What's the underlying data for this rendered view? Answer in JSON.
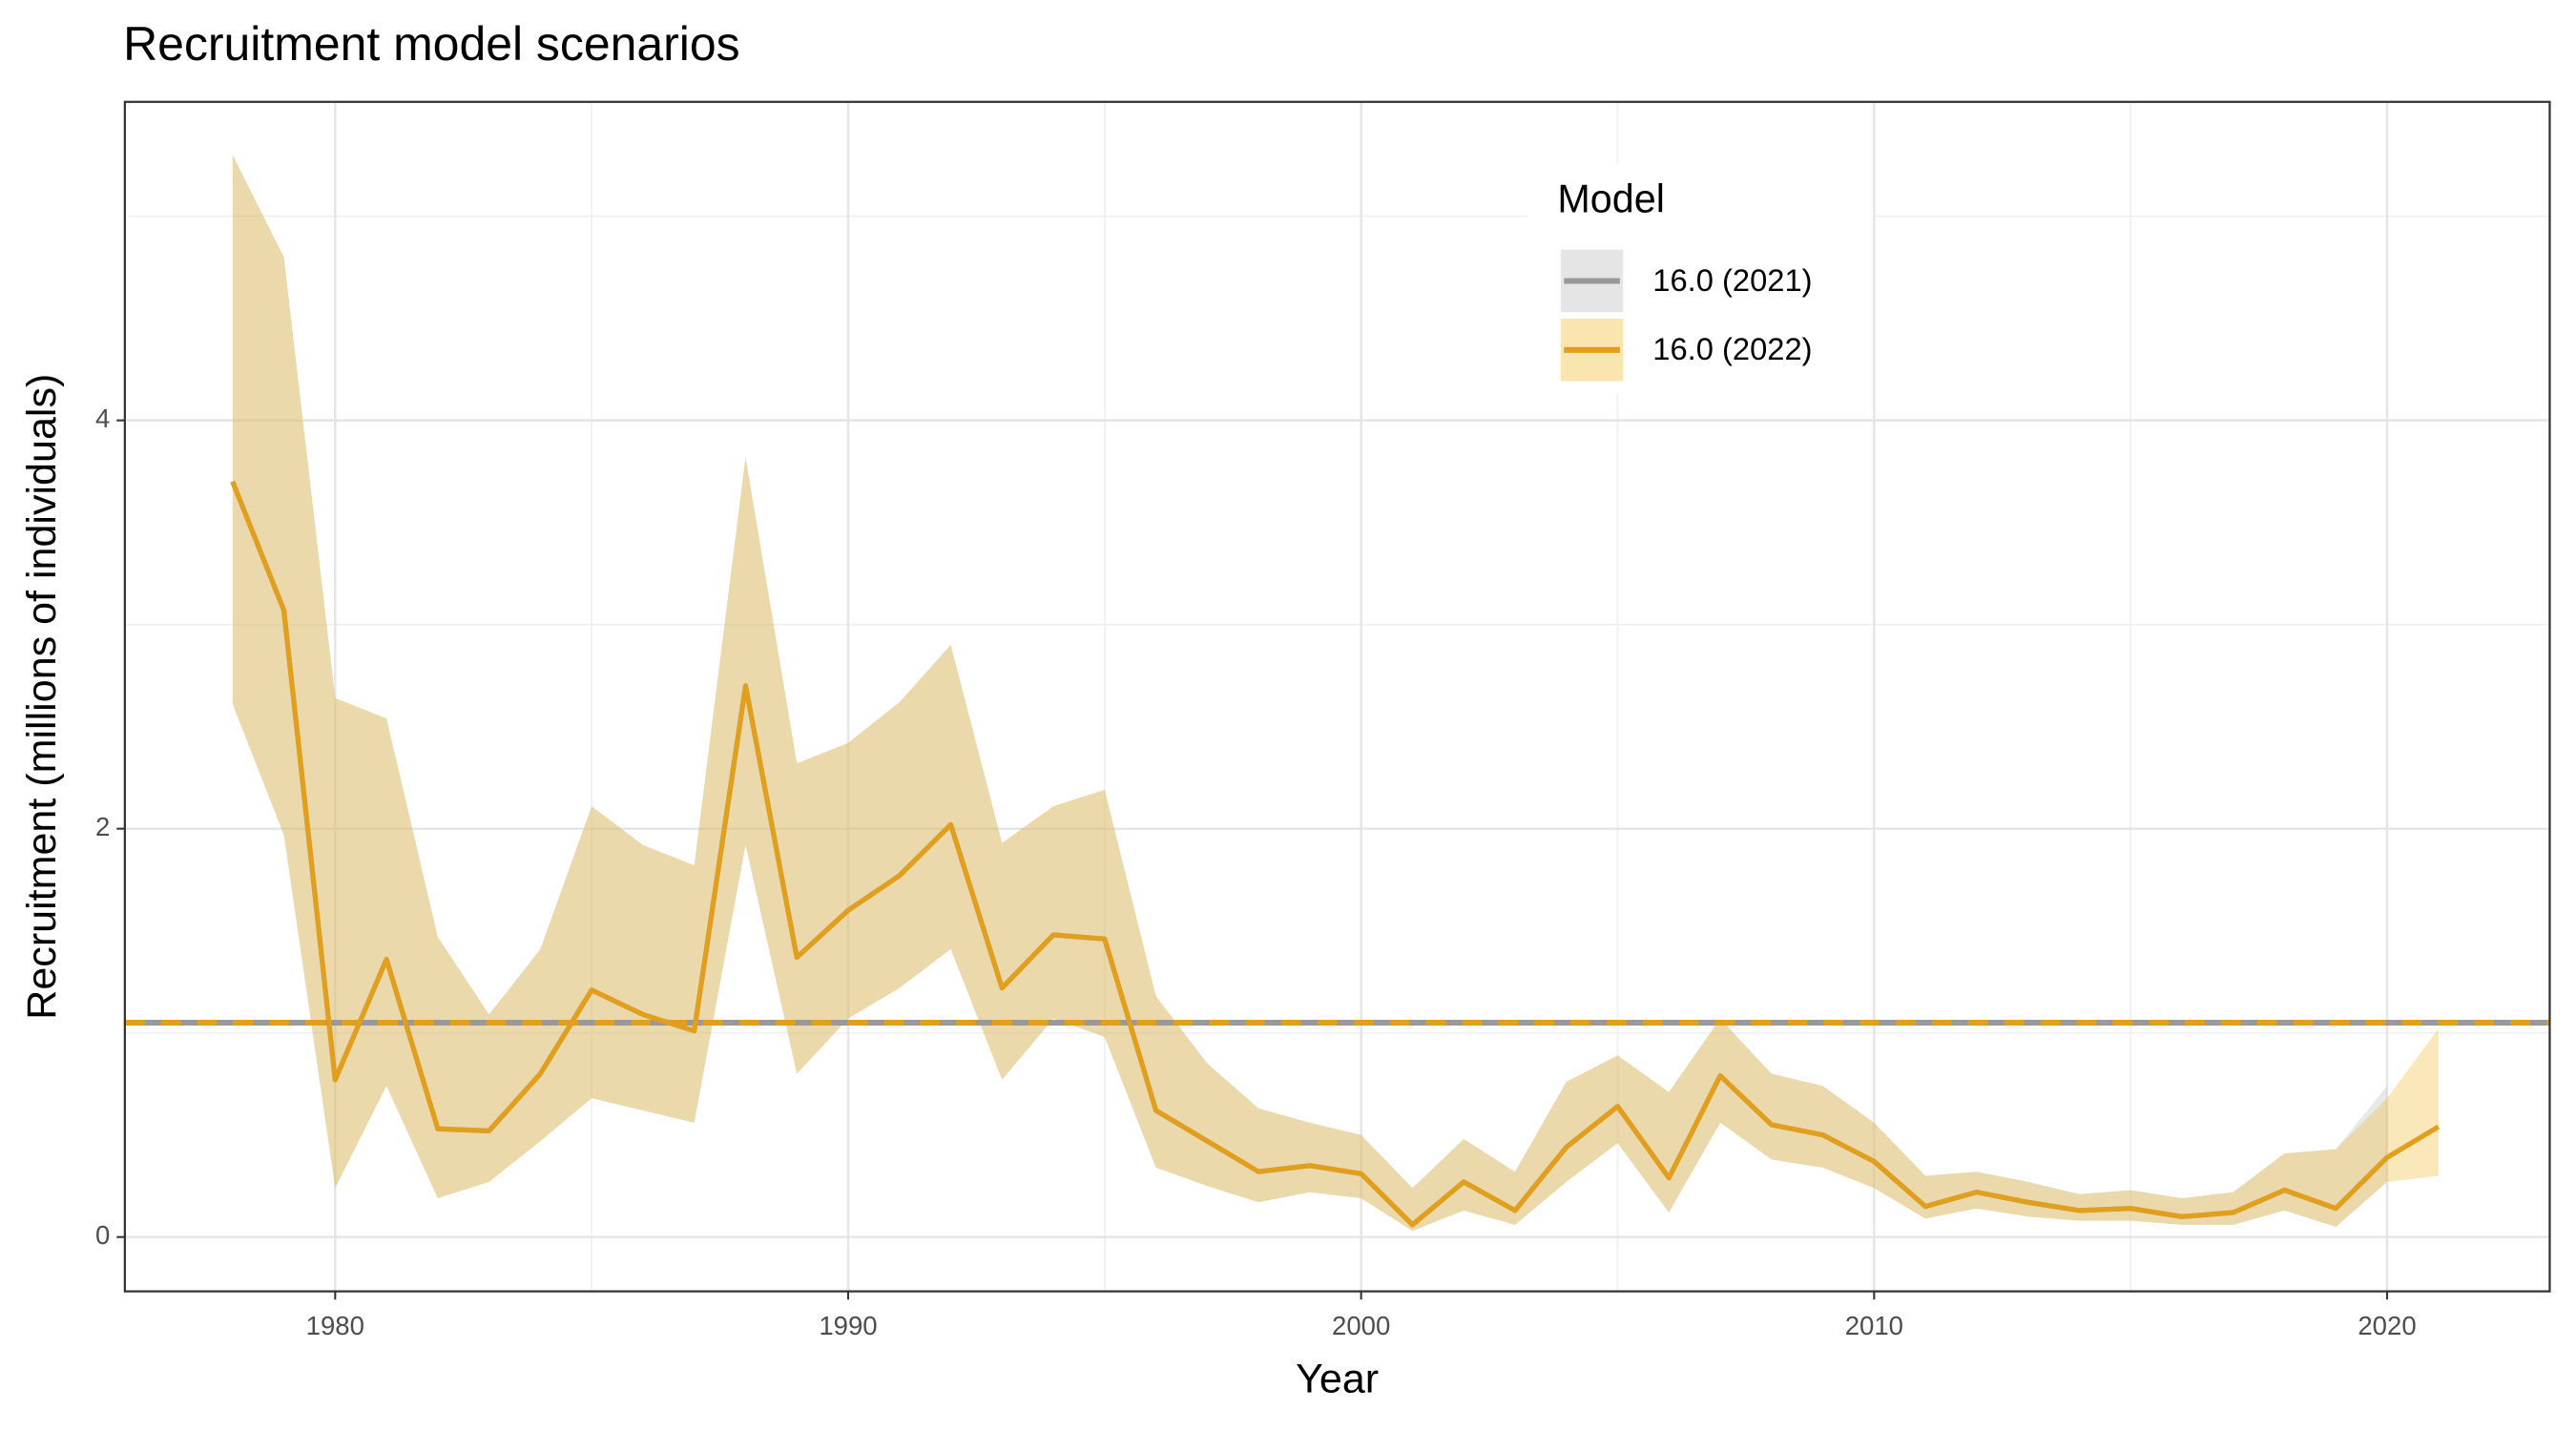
{
  "chart_data": {
    "type": "ribbon-line",
    "title": "Recruitment model scenarios",
    "x_label": "Year",
    "y_label": "Recruitment (millions of individuals)",
    "legend_title": "Model",
    "legend_position": "top-right",
    "x": [
      1978,
      1979,
      1980,
      1981,
      1982,
      1983,
      1984,
      1985,
      1986,
      1987,
      1988,
      1989,
      1990,
      1991,
      1992,
      1993,
      1994,
      1995,
      1996,
      1997,
      1998,
      1999,
      2000,
      2001,
      2002,
      2003,
      2004,
      2005,
      2006,
      2007,
      2008,
      2009,
      2010,
      2011,
      2012,
      2013,
      2014,
      2015,
      2016,
      2017,
      2018,
      2019,
      2020,
      2021
    ],
    "series": [
      {
        "name": "16.0 (2021)",
        "color": "#999999",
        "fill": "#bdbdbd",
        "dash": false,
        "reference": 1.05,
        "values": [
          3.7,
          3.07,
          0.77,
          1.36,
          0.53,
          0.52,
          0.8,
          1.21,
          1.09,
          1.01,
          2.7,
          1.37,
          1.6,
          1.77,
          2.02,
          1.22,
          1.48,
          1.46,
          0.62,
          0.47,
          0.32,
          0.35,
          0.31,
          0.06,
          0.27,
          0.13,
          0.44,
          0.64,
          0.29,
          0.79,
          0.55,
          0.5,
          0.37,
          0.15,
          0.22,
          0.17,
          0.13,
          0.14,
          0.1,
          0.12,
          0.23,
          0.14,
          0.39,
          null
        ],
        "upper": [
          5.3,
          4.8,
          2.64,
          2.54,
          1.47,
          1.09,
          1.41,
          2.11,
          1.92,
          1.82,
          3.82,
          2.32,
          2.42,
          2.62,
          2.9,
          1.93,
          2.11,
          2.19,
          1.18,
          0.85,
          0.63,
          0.56,
          0.5,
          0.24,
          0.48,
          0.32,
          0.76,
          0.89,
          0.71,
          1.07,
          0.8,
          0.74,
          0.56,
          0.3,
          0.32,
          0.27,
          0.21,
          0.23,
          0.19,
          0.22,
          0.41,
          0.43,
          0.74,
          null
        ],
        "lower": [
          2.61,
          1.97,
          0.24,
          0.74,
          0.19,
          0.27,
          0.47,
          0.68,
          0.62,
          0.56,
          1.92,
          0.8,
          1.07,
          1.22,
          1.41,
          0.77,
          1.07,
          0.98,
          0.34,
          0.25,
          0.17,
          0.22,
          0.19,
          0.03,
          0.13,
          0.06,
          0.27,
          0.46,
          0.12,
          0.56,
          0.38,
          0.34,
          0.24,
          0.09,
          0.14,
          0.1,
          0.08,
          0.08,
          0.06,
          0.06,
          0.13,
          0.05,
          0.27,
          null
        ]
      },
      {
        "name": "16.0 (2022)",
        "color": "#e19f1c",
        "fill": "#f2bc3a",
        "dash": true,
        "reference": 1.05,
        "values": [
          3.7,
          3.07,
          0.77,
          1.36,
          0.53,
          0.52,
          0.8,
          1.21,
          1.09,
          1.01,
          2.7,
          1.37,
          1.6,
          1.77,
          2.02,
          1.22,
          1.48,
          1.46,
          0.62,
          0.47,
          0.32,
          0.35,
          0.31,
          0.06,
          0.27,
          0.13,
          0.44,
          0.64,
          0.29,
          0.79,
          0.55,
          0.5,
          0.37,
          0.15,
          0.22,
          0.17,
          0.13,
          0.14,
          0.1,
          0.12,
          0.23,
          0.14,
          0.39,
          0.54
        ],
        "upper": [
          5.3,
          4.8,
          2.64,
          2.54,
          1.47,
          1.09,
          1.41,
          2.11,
          1.92,
          1.82,
          3.82,
          2.32,
          2.42,
          2.62,
          2.9,
          1.93,
          2.11,
          2.19,
          1.18,
          0.85,
          0.63,
          0.56,
          0.5,
          0.24,
          0.48,
          0.32,
          0.76,
          0.89,
          0.71,
          1.07,
          0.8,
          0.74,
          0.56,
          0.3,
          0.32,
          0.27,
          0.21,
          0.23,
          0.19,
          0.22,
          0.41,
          0.43,
          0.68,
          1.02
        ],
        "lower": [
          2.61,
          1.97,
          0.24,
          0.74,
          0.19,
          0.27,
          0.47,
          0.68,
          0.62,
          0.56,
          1.92,
          0.8,
          1.07,
          1.22,
          1.41,
          0.77,
          1.07,
          0.98,
          0.34,
          0.25,
          0.17,
          0.22,
          0.19,
          0.03,
          0.13,
          0.06,
          0.27,
          0.46,
          0.12,
          0.56,
          0.38,
          0.34,
          0.24,
          0.09,
          0.14,
          0.1,
          0.08,
          0.08,
          0.06,
          0.06,
          0.13,
          0.05,
          0.27,
          0.3
        ]
      }
    ],
    "xlim": [
      1975.9,
      2023.17
    ],
    "xticks": [
      1980,
      1990,
      2000,
      2010,
      2020
    ],
    "x_minor_ticks": [
      1985,
      1995,
      2005,
      2015
    ],
    "ylim": [
      -0.266,
      5.56
    ],
    "yticks": [
      0,
      2,
      4
    ],
    "y_minor_ticks": [
      1,
      3,
      5
    ],
    "grid": true
  }
}
